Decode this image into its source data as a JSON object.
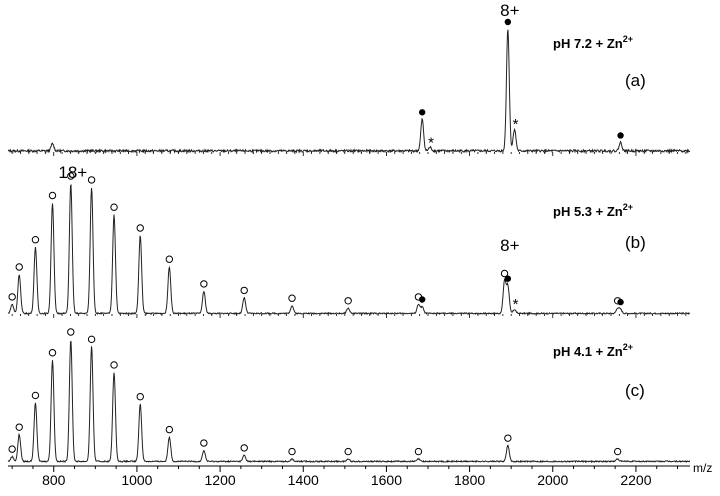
{
  "chart_data": {
    "type": "line",
    "x_axis": {
      "range": [
        690,
        2330
      ],
      "ticks": [
        800,
        1000,
        1200,
        1400,
        1600,
        1800,
        2000,
        2200
      ],
      "unit_label": "m/z"
    },
    "panels": [
      {
        "label": "(a)",
        "condition": "pH 7.2 + Zn",
        "ion_superscript": "2+",
        "charge_annotation": {
          "text": "8+",
          "x": 1892
        },
        "peaks": [
          {
            "x": 797,
            "h": 0.06,
            "marker": ""
          },
          {
            "x": 1686,
            "h": 0.26,
            "marker": "filled"
          },
          {
            "x": 1705,
            "h": 0.03,
            "marker": "star"
          },
          {
            "x": 1892,
            "h": 1.0,
            "marker": "filled"
          },
          {
            "x": 1908,
            "h": 0.18,
            "marker": "star"
          },
          {
            "x": 2163,
            "h": 0.07,
            "marker": "filled"
          }
        ]
      },
      {
        "label": "(b)",
        "condition": "pH 5.3 + Zn",
        "ion_superscript": "2+",
        "charge_annotation": {
          "text": "18+",
          "x": 841
        },
        "charge_annotation_2": {
          "text": "8+",
          "x": 1892
        },
        "peaks": [
          {
            "x": 700,
            "h": 0.07,
            "marker": "open"
          },
          {
            "x": 717,
            "h": 0.3,
            "marker": "open"
          },
          {
            "x": 756,
            "h": 0.51,
            "marker": "open"
          },
          {
            "x": 797,
            "h": 0.85,
            "marker": "open"
          },
          {
            "x": 841,
            "h": 1.0,
            "marker": "open"
          },
          {
            "x": 891,
            "h": 0.97,
            "marker": "open"
          },
          {
            "x": 945,
            "h": 0.76,
            "marker": "open"
          },
          {
            "x": 1008,
            "h": 0.6,
            "marker": "open"
          },
          {
            "x": 1078,
            "h": 0.36,
            "marker": "open"
          },
          {
            "x": 1161,
            "h": 0.17,
            "marker": "open"
          },
          {
            "x": 1258,
            "h": 0.12,
            "marker": "open"
          },
          {
            "x": 1373,
            "h": 0.06,
            "marker": "open"
          },
          {
            "x": 1508,
            "h": 0.04,
            "marker": "open"
          },
          {
            "x": 1677,
            "h": 0.07,
            "marker": "open"
          },
          {
            "x": 1686,
            "h": 0.05,
            "marker": "filled"
          },
          {
            "x": 1884,
            "h": 0.25,
            "marker": "open"
          },
          {
            "x": 1892,
            "h": 0.21,
            "marker": "filled"
          },
          {
            "x": 1908,
            "h": 0.03,
            "marker": "star"
          },
          {
            "x": 2156,
            "h": 0.04,
            "marker": "open"
          },
          {
            "x": 2163,
            "h": 0.03,
            "marker": "filled"
          }
        ]
      },
      {
        "label": "(c)",
        "condition": "pH 4.1 + Zn",
        "ion_superscript": "2+",
        "charge_annotation": null,
        "peaks": [
          {
            "x": 700,
            "h": 0.04,
            "marker": "open"
          },
          {
            "x": 717,
            "h": 0.22,
            "marker": "open"
          },
          {
            "x": 756,
            "h": 0.48,
            "marker": "open"
          },
          {
            "x": 797,
            "h": 0.83,
            "marker": "open"
          },
          {
            "x": 841,
            "h": 1.0,
            "marker": "open"
          },
          {
            "x": 891,
            "h": 0.94,
            "marker": "open"
          },
          {
            "x": 945,
            "h": 0.73,
            "marker": "open"
          },
          {
            "x": 1008,
            "h": 0.47,
            "marker": "open"
          },
          {
            "x": 1078,
            "h": 0.2,
            "marker": "open"
          },
          {
            "x": 1161,
            "h": 0.09,
            "marker": "open"
          },
          {
            "x": 1258,
            "h": 0.05,
            "marker": "open"
          },
          {
            "x": 1373,
            "h": 0.02,
            "marker": "open"
          },
          {
            "x": 1508,
            "h": 0.02,
            "marker": "open"
          },
          {
            "x": 1677,
            "h": 0.02,
            "marker": "open"
          },
          {
            "x": 1892,
            "h": 0.13,
            "marker": "open"
          },
          {
            "x": 2156,
            "h": 0.02,
            "marker": "open"
          }
        ]
      }
    ]
  }
}
